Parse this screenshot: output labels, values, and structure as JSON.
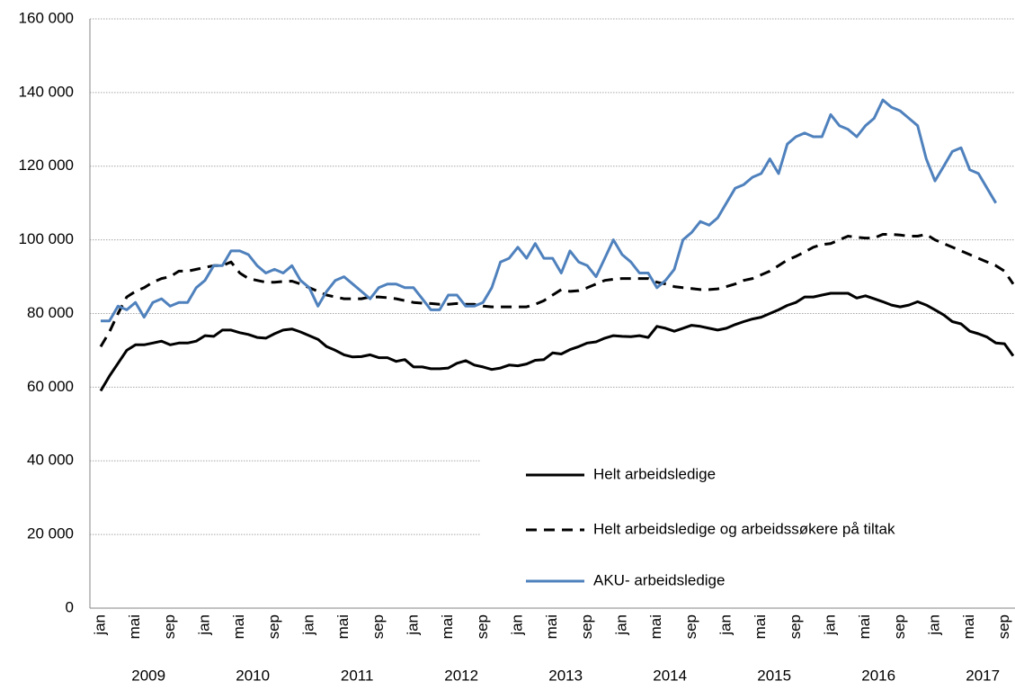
{
  "chart_data": {
    "type": "line",
    "categories": [
      "jan",
      null,
      null,
      null,
      "mai",
      null,
      null,
      null,
      "sep",
      null,
      null,
      null,
      "jan",
      null,
      null,
      null,
      "mai",
      null,
      null,
      null,
      "sep",
      null,
      null,
      null,
      "jan",
      null,
      null,
      null,
      "mai",
      null,
      null,
      null,
      "sep",
      null,
      null,
      null,
      "jan",
      null,
      null,
      null,
      "mai",
      null,
      null,
      null,
      "sep",
      null,
      null,
      null,
      "jan",
      null,
      null,
      null,
      "mai",
      null,
      null,
      null,
      "sep",
      null,
      null,
      null,
      "jan",
      null,
      null,
      null,
      "mai",
      null,
      null,
      null,
      "sep",
      null,
      null,
      null,
      "jan",
      null,
      null,
      null,
      "mai",
      null,
      null,
      null,
      "sep",
      null,
      null,
      null,
      "jan",
      null,
      null,
      null,
      "mai",
      null,
      null,
      null,
      "sep",
      null,
      null,
      null,
      "jan",
      null,
      null,
      null,
      "mai",
      null,
      null,
      null,
      "sep",
      null
    ],
    "years": [
      "2009",
      "2010",
      "2011",
      "2012",
      "2013",
      "2014",
      "2015",
      "2016",
      "2017"
    ],
    "ylim": [
      0,
      160000
    ],
    "yticks": [
      {
        "value": 0,
        "label": "0"
      },
      {
        "value": 20000,
        "label": "20 000"
      },
      {
        "value": 40000,
        "label": "40 000"
      },
      {
        "value": 60000,
        "label": "60 000"
      },
      {
        "value": 80000,
        "label": "80 000"
      },
      {
        "value": 100000,
        "label": "100 000"
      },
      {
        "value": 120000,
        "label": "120 000"
      },
      {
        "value": 140000,
        "label": "140 000"
      },
      {
        "value": 160000,
        "label": "160 000"
      }
    ],
    "grid": true,
    "legend": "lower right",
    "series": [
      {
        "name": "Helt arbeidsledige",
        "color": "#000000",
        "dash": "solid",
        "values": [
          59000,
          63000,
          66500,
          70000,
          71500,
          71500,
          72000,
          72500,
          71500,
          72000,
          72000,
          72500,
          74000,
          73800,
          75500,
          75500,
          74800,
          74300,
          73500,
          73300,
          74500,
          75500,
          75800,
          75000,
          74000,
          73000,
          71000,
          70000,
          68800,
          68200,
          68300,
          68800,
          68000,
          68000,
          67000,
          67500,
          65500,
          65500,
          65000,
          65000,
          65200,
          66500,
          67200,
          66000,
          65500,
          64800,
          65200,
          66000,
          65800,
          66300,
          67300,
          67500,
          69300,
          69000,
          70200,
          71000,
          72000,
          72300,
          73300,
          74000,
          73800,
          73700,
          74000,
          73500,
          76500,
          76000,
          75200,
          76000,
          76800,
          76500,
          76000,
          75500,
          76000,
          77000,
          77800,
          78500,
          79000,
          80000,
          81000,
          82200,
          83000,
          84500,
          84500,
          85000,
          85500,
          85500,
          85500,
          84200,
          84800,
          84000,
          83200,
          82300,
          81800,
          82300,
          83200,
          82300,
          81000,
          79600,
          77800,
          77200,
          75200,
          74500,
          73600,
          72000,
          71800,
          68500
        ]
      },
      {
        "name": "Helt arbeidsledige og arbeidssøkere på tiltak",
        "color": "#000000",
        "dash": "dashed",
        "values": [
          71000,
          75000,
          80000,
          84500,
          86000,
          87000,
          88500,
          89500,
          90000,
          91500,
          91500,
          92000,
          92500,
          93000,
          93000,
          94000,
          91000,
          89500,
          89000,
          88500,
          88500,
          88700,
          88800,
          88000,
          87000,
          86000,
          85000,
          84500,
          84000,
          84000,
          84000,
          84500,
          84500,
          84300,
          84000,
          83500,
          83000,
          82800,
          82700,
          82500,
          82500,
          82700,
          82500,
          82500,
          82000,
          81800,
          81800,
          81800,
          81800,
          81800,
          82500,
          83500,
          85000,
          86500,
          86000,
          86200,
          87000,
          88000,
          89000,
          89300,
          89500,
          89500,
          89500,
          89500,
          88500,
          88000,
          87300,
          87000,
          86800,
          86500,
          86500,
          86700,
          87300,
          88000,
          89000,
          89500,
          90500,
          91500,
          93000,
          94500,
          95500,
          96700,
          98000,
          98700,
          99000,
          100000,
          101000,
          100700,
          100500,
          100500,
          101500,
          101500,
          101300,
          101000,
          101000,
          101500,
          100000,
          99000,
          98000,
          97000,
          96000,
          95000,
          94000,
          93000,
          91500,
          88000
        ]
      },
      {
        "name": "AKU- arbeidsledige",
        "color": "#4f81bd",
        "dash": "solid",
        "values": [
          78000,
          78000,
          82000,
          81000,
          83000,
          79000,
          83000,
          84000,
          82000,
          83000,
          83000,
          87000,
          89000,
          93000,
          93000,
          97000,
          97000,
          96000,
          93000,
          91000,
          92000,
          91000,
          93000,
          89000,
          87000,
          82000,
          86000,
          89000,
          90000,
          88000,
          86000,
          84000,
          87000,
          88000,
          88000,
          87000,
          87000,
          84000,
          81000,
          81000,
          85000,
          85000,
          82000,
          82000,
          83000,
          87000,
          94000,
          95000,
          98000,
          95000,
          99000,
          95000,
          95000,
          91000,
          97000,
          94000,
          93000,
          90000,
          95000,
          100000,
          96000,
          94000,
          91000,
          91000,
          87000,
          89000,
          92000,
          100000,
          102000,
          105000,
          104000,
          106000,
          110000,
          114000,
          115000,
          117000,
          118000,
          122000,
          118000,
          126000,
          128000,
          129000,
          128000,
          128000,
          134000,
          131000,
          130000,
          128000,
          131000,
          133000,
          138000,
          136000,
          135000,
          133000,
          131000,
          122000,
          116000,
          120000,
          124000,
          125000,
          119000,
          118000,
          114000,
          110000,
          null,
          null
        ]
      }
    ]
  }
}
